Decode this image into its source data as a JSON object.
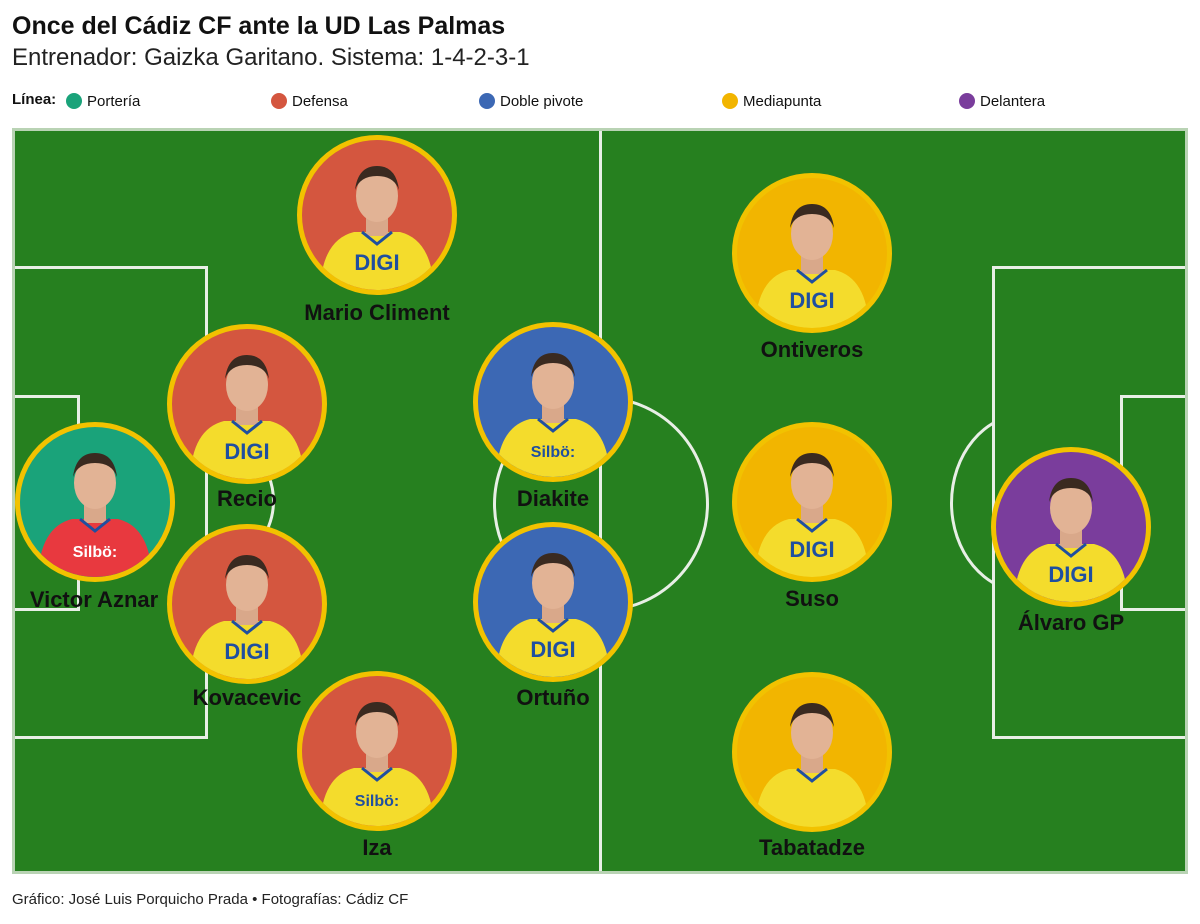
{
  "header": {
    "title": "Once del Cádiz CF ante la UD Las Palmas",
    "subtitle": "Entrenador: Gaizka Garitano. Sistema: 1-4-2-3-1"
  },
  "legend": {
    "title": "Línea:",
    "items": [
      {
        "label": "Portería",
        "color": "#1aa37a"
      },
      {
        "label": "Defensa",
        "color": "#d4563f"
      },
      {
        "label": "Doble pivote",
        "color": "#3c68b4"
      },
      {
        "label": "Mediapunta",
        "color": "#f2b500"
      },
      {
        "label": "Delantera",
        "color": "#7a3d9c"
      }
    ]
  },
  "players": [
    {
      "name": "Victor Aznar",
      "line": "Portería",
      "shirt_text": "Silbö:",
      "kit": "red"
    },
    {
      "name": "Mario Climent",
      "line": "Defensa",
      "shirt_text": "DIGI",
      "kit": "yellow"
    },
    {
      "name": "Recio",
      "line": "Defensa",
      "shirt_text": "DIGI",
      "kit": "yellow"
    },
    {
      "name": "Kovacevic",
      "line": "Defensa",
      "shirt_text": "DIGI",
      "kit": "yellow"
    },
    {
      "name": "Iza",
      "line": "Defensa",
      "shirt_text": "Silbö:",
      "kit": "yellow"
    },
    {
      "name": "Diakite",
      "line": "Doble pivote",
      "shirt_text": "Silbö:",
      "kit": "yellow"
    },
    {
      "name": "Ortuño",
      "line": "Doble pivote",
      "shirt_text": "DIGI",
      "kit": "yellow"
    },
    {
      "name": "Ontiveros",
      "line": "Mediapunta",
      "shirt_text": "DIGI",
      "kit": "yellow"
    },
    {
      "name": "Suso",
      "line": "Mediapunta",
      "shirt_text": "DIGI",
      "kit": "yellow"
    },
    {
      "name": "Tabatadze",
      "line": "Mediapunta",
      "shirt_text": "",
      "kit": "yellow"
    },
    {
      "name": "Álvaro GP",
      "line": "Delantera",
      "shirt_text": "DIGI",
      "kit": "yellow"
    }
  ],
  "footer": "Gráfico: José Luis Porquicho Prada • Fotografías: Cádiz CF"
}
